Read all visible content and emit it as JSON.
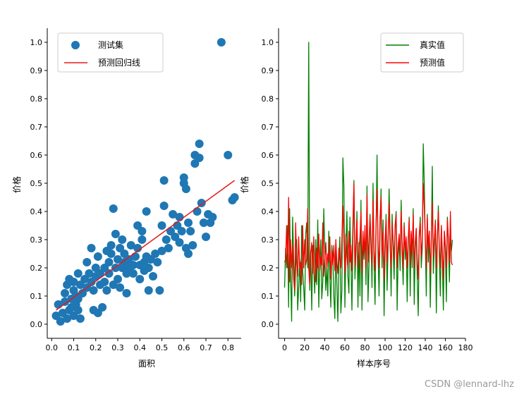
{
  "watermark": "CSDN @lennard-lhz",
  "colors": {
    "scatter": "#1f77b4",
    "regression": "#e41a1c",
    "true_line": "#008000",
    "pred_line": "#ff0000"
  },
  "chart_data": [
    {
      "type": "scatter",
      "xlabel": "面积",
      "ylabel": "价格",
      "xlim": [
        -0.02,
        0.86
      ],
      "ylim": [
        -0.05,
        1.05
      ],
      "xticks": [
        "0.0",
        "0.1",
        "0.2",
        "0.3",
        "0.4",
        "0.5",
        "0.6",
        "0.7",
        "0.8"
      ],
      "yticks": [
        "0.0",
        "0.1",
        "0.2",
        "0.3",
        "0.4",
        "0.5",
        "0.6",
        "0.7",
        "0.8",
        "0.9",
        "1.0"
      ],
      "legend": {
        "placement": "top-left",
        "entries": [
          "测试集",
          "预测回归线"
        ]
      },
      "series": [
        {
          "name": "测试集",
          "kind": "scatter",
          "points": [
            [
              0.02,
              0.03
            ],
            [
              0.03,
              0.07
            ],
            [
              0.04,
              0.01
            ],
            [
              0.05,
              0.04
            ],
            [
              0.06,
              0.08
            ],
            [
              0.06,
              0.11
            ],
            [
              0.07,
              0.02
            ],
            [
              0.07,
              0.14
            ],
            [
              0.08,
              0.05
            ],
            [
              0.08,
              0.16
            ],
            [
              0.09,
              0.09
            ],
            [
              0.09,
              0.06
            ],
            [
              0.1,
              0.12
            ],
            [
              0.1,
              0.03
            ],
            [
              0.1,
              0.15
            ],
            [
              0.11,
              0.07
            ],
            [
              0.11,
              0.1
            ],
            [
              0.12,
              0.05
            ],
            [
              0.12,
              0.18
            ],
            [
              0.12,
              0.09
            ],
            [
              0.13,
              0.02
            ],
            [
              0.13,
              0.14
            ],
            [
              0.14,
              0.11
            ],
            [
              0.15,
              0.16
            ],
            [
              0.16,
              0.13
            ],
            [
              0.16,
              0.22
            ],
            [
              0.17,
              0.18
            ],
            [
              0.18,
              0.15
            ],
            [
              0.18,
              0.27
            ],
            [
              0.19,
              0.05
            ],
            [
              0.19,
              0.12
            ],
            [
              0.2,
              0.17
            ],
            [
              0.2,
              0.2
            ],
            [
              0.21,
              0.04
            ],
            [
              0.21,
              0.24
            ],
            [
              0.22,
              0.14
            ],
            [
              0.22,
              0.18
            ],
            [
              0.23,
              0.06
            ],
            [
              0.24,
              0.15
            ],
            [
              0.24,
              0.2
            ],
            [
              0.25,
              0.26
            ],
            [
              0.25,
              0.12
            ],
            [
              0.26,
              0.18
            ],
            [
              0.26,
              0.22
            ],
            [
              0.27,
              0.25
            ],
            [
              0.27,
              0.28
            ],
            [
              0.28,
              0.14
            ],
            [
              0.28,
              0.41
            ],
            [
              0.29,
              0.2
            ],
            [
              0.29,
              0.32
            ],
            [
              0.3,
              0.16
            ],
            [
              0.3,
              0.23
            ],
            [
              0.31,
              0.27
            ],
            [
              0.31,
              0.13
            ],
            [
              0.32,
              0.3
            ],
            [
              0.32,
              0.2
            ],
            [
              0.33,
              0.25
            ],
            [
              0.33,
              0.22
            ],
            [
              0.34,
              0.18
            ],
            [
              0.34,
              0.11
            ],
            [
              0.35,
              0.2
            ],
            [
              0.35,
              0.23
            ],
            [
              0.36,
              0.28
            ],
            [
              0.37,
              0.21
            ],
            [
              0.37,
              0.18
            ],
            [
              0.38,
              0.24
            ],
            [
              0.39,
              0.35
            ],
            [
              0.39,
              0.27
            ],
            [
              0.4,
              0.21
            ],
            [
              0.4,
              0.16
            ],
            [
              0.41,
              0.3
            ],
            [
              0.41,
              0.33
            ],
            [
              0.42,
              0.22
            ],
            [
              0.42,
              0.19
            ],
            [
              0.43,
              0.24
            ],
            [
              0.43,
              0.4
            ],
            [
              0.44,
              0.12
            ],
            [
              0.44,
              0.2
            ],
            [
              0.45,
              0.23
            ],
            [
              0.46,
              0.17
            ],
            [
              0.47,
              0.25
            ],
            [
              0.48,
              0.22
            ],
            [
              0.49,
              0.12
            ],
            [
              0.5,
              0.26
            ],
            [
              0.5,
              0.35
            ],
            [
              0.51,
              0.42
            ],
            [
              0.51,
              0.51
            ],
            [
              0.52,
              0.3
            ],
            [
              0.53,
              0.27
            ],
            [
              0.54,
              0.33
            ],
            [
              0.55,
              0.39
            ],
            [
              0.56,
              0.31
            ],
            [
              0.57,
              0.35
            ],
            [
              0.58,
              0.29
            ],
            [
              0.58,
              0.38
            ],
            [
              0.59,
              0.33
            ],
            [
              0.6,
              0.5
            ],
            [
              0.6,
              0.52
            ],
            [
              0.61,
              0.27
            ],
            [
              0.61,
              0.48
            ],
            [
              0.62,
              0.25
            ],
            [
              0.62,
              0.36
            ],
            [
              0.63,
              0.33
            ],
            [
              0.64,
              0.28
            ],
            [
              0.65,
              0.6
            ],
            [
              0.65,
              0.57
            ],
            [
              0.66,
              0.4
            ],
            [
              0.67,
              0.64
            ],
            [
              0.67,
              0.59
            ],
            [
              0.68,
              0.43
            ],
            [
              0.69,
              0.36
            ],
            [
              0.7,
              0.31
            ],
            [
              0.71,
              0.39
            ],
            [
              0.72,
              0.36
            ],
            [
              0.73,
              0.38
            ],
            [
              0.77,
              1.0
            ],
            [
              0.8,
              0.6
            ],
            [
              0.82,
              0.44
            ],
            [
              0.83,
              0.45
            ]
          ]
        },
        {
          "name": "预测回归线",
          "kind": "line",
          "points": [
            [
              0.02,
              0.05
            ],
            [
              0.83,
              0.51
            ]
          ]
        }
      ]
    },
    {
      "type": "line",
      "xlabel": "样本序号",
      "ylabel": "价格",
      "xlim": [
        -6,
        180
      ],
      "ylim": [
        -0.05,
        1.05
      ],
      "xticks": [
        "0",
        "20",
        "40",
        "60",
        "80",
        "100",
        "120",
        "140",
        "160",
        "180"
      ],
      "yticks": [
        "0.0",
        "0.1",
        "0.2",
        "0.3",
        "0.4",
        "0.5",
        "0.6",
        "0.7",
        "0.8",
        "0.9",
        "1.0"
      ],
      "legend": {
        "placement": "top-right",
        "entries": [
          "真实值",
          "预测值"
        ]
      },
      "series": [
        {
          "name": "真实值",
          "values": [
            0.13,
            0.27,
            0.2,
            0.35,
            0.06,
            0.41,
            0.17,
            0.01,
            0.38,
            0.23,
            0.1,
            0.2,
            0.3,
            0.05,
            0.13,
            0.23,
            0.08,
            0.35,
            0.19,
            0.13,
            0.05,
            0.32,
            0.36,
            0.2,
            1.0,
            0.12,
            0.26,
            0.05,
            0.28,
            0.2,
            0.11,
            0.3,
            0.14,
            0.37,
            0.06,
            0.22,
            0.3,
            0.09,
            0.15,
            0.41,
            0.25,
            0.12,
            0.2,
            0.1,
            0.33,
            0.17,
            0.06,
            0.28,
            0.24,
            0.1,
            0.02,
            0.3,
            0.14,
            0.01,
            0.22,
            0.31,
            0.04,
            0.12,
            0.59,
            0.49,
            0.06,
            0.27,
            0.4,
            0.17,
            0.11,
            0.38,
            0.23,
            0.05,
            0.3,
            0.51,
            0.16,
            0.25,
            0.4,
            0.06,
            0.29,
            0.1,
            0.44,
            0.05,
            0.31,
            0.23,
            0.32,
            0.14,
            0.49,
            0.08,
            0.21,
            0.39,
            0.3,
            0.13,
            0.5,
            0.22,
            0.07,
            0.33,
            0.6,
            0.25,
            0.1,
            0.34,
            0.48,
            0.2,
            0.37,
            0.03,
            0.26,
            0.39,
            0.12,
            0.28,
            0.48,
            0.32,
            0.1,
            0.39,
            0.27,
            0.16,
            0.35,
            0.4,
            0.05,
            0.24,
            0.3,
            0.19,
            0.44,
            0.25,
            0.14,
            0.36,
            0.23,
            0.3,
            0.08,
            0.28,
            0.38,
            0.1,
            0.32,
            0.2,
            0.41,
            0.07,
            0.26,
            0.34,
            0.16,
            0.03,
            0.31,
            0.38,
            0.2,
            0.27,
            0.64,
            0.5,
            0.3,
            0.1,
            0.39,
            0.22,
            0.33,
            0.06,
            0.28,
            0.56,
            0.18,
            0.27,
            0.37,
            0.04,
            0.3,
            0.42,
            0.24,
            0.1,
            0.35,
            0.22,
            0.05,
            0.33,
            0.27,
            0.08,
            0.38,
            0.3,
            0.15,
            0.32,
            0.26,
            0.3
          ],
          "note": ""
        },
        {
          "name": "预测值",
          "values": [
            0.22,
            0.23,
            0.35,
            0.2,
            0.45,
            0.15,
            0.3,
            0.2,
            0.28,
            0.16,
            0.12,
            0.36,
            0.22,
            0.17,
            0.31,
            0.2,
            0.22,
            0.14,
            0.35,
            0.2,
            0.3,
            0.21,
            0.23,
            0.41,
            0.2,
            0.14,
            0.25,
            0.29,
            0.18,
            0.31,
            0.22,
            0.15,
            0.27,
            0.2,
            0.32,
            0.19,
            0.24,
            0.21,
            0.36,
            0.17,
            0.23,
            0.29,
            0.2,
            0.25,
            0.22,
            0.31,
            0.16,
            0.26,
            0.21,
            0.28,
            0.19,
            0.3,
            0.22,
            0.18,
            0.27,
            0.23,
            0.2,
            0.3,
            0.42,
            0.3,
            0.18,
            0.32,
            0.24,
            0.2,
            0.33,
            0.22,
            0.28,
            0.19,
            0.36,
            0.5,
            0.21,
            0.29,
            0.37,
            0.2,
            0.26,
            0.31,
            0.4,
            0.18,
            0.33,
            0.25,
            0.35,
            0.2,
            0.46,
            0.22,
            0.3,
            0.38,
            0.27,
            0.21,
            0.44,
            0.26,
            0.19,
            0.35,
            0.48,
            0.28,
            0.2,
            0.38,
            0.45,
            0.24,
            0.33,
            0.16,
            0.3,
            0.37,
            0.22,
            0.31,
            0.43,
            0.27,
            0.2,
            0.36,
            0.3,
            0.23,
            0.34,
            0.39,
            0.2,
            0.28,
            0.32,
            0.24,
            0.4,
            0.29,
            0.2,
            0.35,
            0.26,
            0.31,
            0.2,
            0.3,
            0.37,
            0.21,
            0.33,
            0.25,
            0.39,
            0.2,
            0.29,
            0.34,
            0.23,
            0.16,
            0.32,
            0.36,
            0.24,
            0.3,
            0.5,
            0.42,
            0.3,
            0.2,
            0.38,
            0.27,
            0.33,
            0.18,
            0.3,
            0.43,
            0.24,
            0.3,
            0.36,
            0.2,
            0.31,
            0.4,
            0.27,
            0.2,
            0.35,
            0.26,
            0.16,
            0.33,
            0.28,
            0.2,
            0.37,
            0.3,
            0.22,
            0.4,
            0.22,
            0.21
          ],
          "note": ""
        }
      ]
    }
  ]
}
